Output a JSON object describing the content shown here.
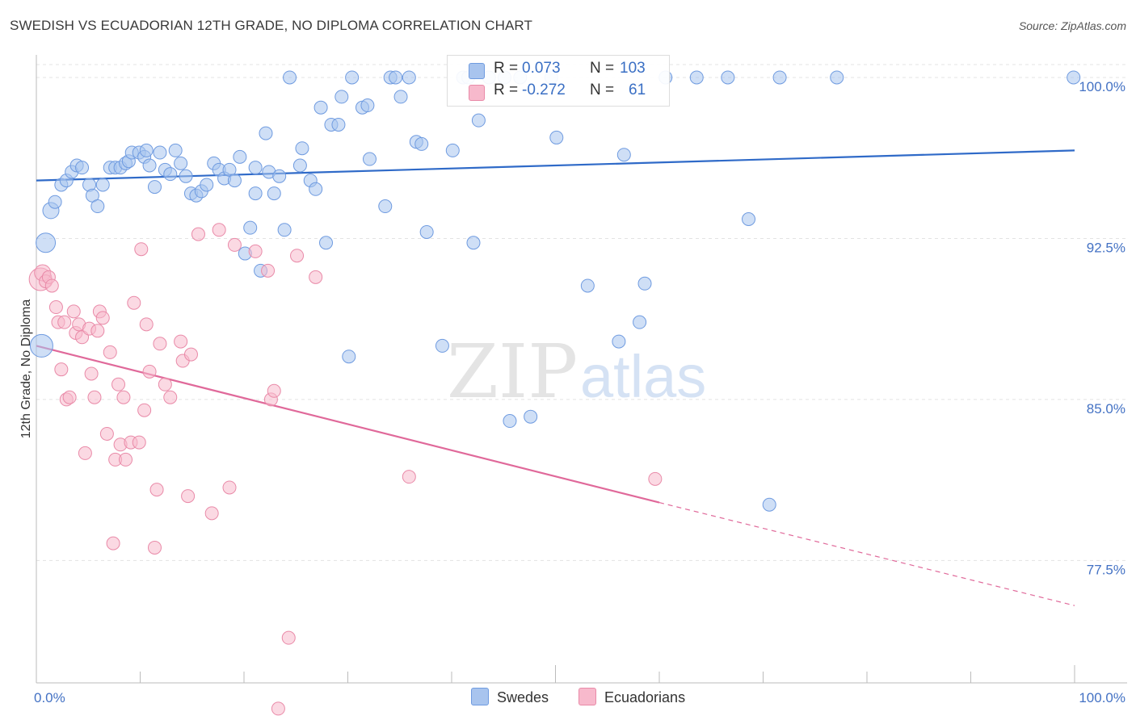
{
  "title": "SWEDISH VS ECUADORIAN 12TH GRADE, NO DIPLOMA CORRELATION CHART",
  "source": "Source: ZipAtlas.com",
  "watermark": {
    "zip": "ZIP",
    "atlas": "atlas"
  },
  "legend": {
    "r_label": "R =",
    "n_label": "N =",
    "rows": [
      {
        "series": "Swedes",
        "r": "0.073",
        "n": "103",
        "color": "#a8c4ee",
        "edge": "#6f9be0"
      },
      {
        "series": "Ecuadorians",
        "r": "-0.272",
        "n": "61",
        "color": "#f7b9cc",
        "edge": "#e98aa8"
      }
    ]
  },
  "bottom_legend": {
    "swedes": "Swedes",
    "ecuadorians": "Ecuadorians"
  },
  "chart_data": {
    "type": "scatter",
    "xlabel": "",
    "ylabel": "12th Grade, No Diploma",
    "xlim": [
      0,
      100
    ],
    "ylim": [
      71.8,
      100.6
    ],
    "x_tick_labels": [
      "0.0%",
      "100.0%"
    ],
    "y_ticks": [
      {
        "value": 100.0,
        "label": "100.0%"
      },
      {
        "value": 92.5,
        "label": "92.5%"
      },
      {
        "value": 85.0,
        "label": "85.0%"
      },
      {
        "value": 77.5,
        "label": "77.5%"
      }
    ],
    "grid": true,
    "legend_position": "top-center",
    "series": [
      {
        "name": "Swedes",
        "color": "#a8c4ee",
        "edge": "#6f9be0",
        "trend": {
          "x0": 0,
          "y0": 95.2,
          "x1": 100,
          "y1": 96.6,
          "color": "#2f6ac8"
        },
        "points": [
          [
            0.5,
            87.5,
            14
          ],
          [
            0.9,
            92.3,
            12
          ],
          [
            1.4,
            93.8,
            10
          ],
          [
            1.8,
            94.2,
            8
          ],
          [
            2.4,
            95.0,
            8
          ],
          [
            2.9,
            95.2,
            8
          ],
          [
            3.4,
            95.6,
            8
          ],
          [
            3.9,
            95.9,
            8
          ],
          [
            4.4,
            95.8,
            8
          ],
          [
            5.1,
            95.0,
            8
          ],
          [
            5.4,
            94.5,
            8
          ],
          [
            5.9,
            94.0,
            8
          ],
          [
            6.4,
            95.0,
            8
          ],
          [
            7.1,
            95.8,
            8
          ],
          [
            7.6,
            95.8,
            8
          ],
          [
            8.1,
            95.8,
            8
          ],
          [
            8.6,
            96.0,
            8
          ],
          [
            8.9,
            96.1,
            8
          ],
          [
            9.2,
            96.5,
            8
          ],
          [
            9.9,
            96.5,
            8
          ],
          [
            10.4,
            96.3,
            8
          ],
          [
            10.6,
            96.6,
            8
          ],
          [
            10.9,
            95.9,
            8
          ],
          [
            11.4,
            94.9,
            8
          ],
          [
            11.9,
            96.5,
            8
          ],
          [
            12.4,
            95.7,
            8
          ],
          [
            12.9,
            95.5,
            8
          ],
          [
            13.4,
            96.6,
            8
          ],
          [
            13.9,
            96.0,
            8
          ],
          [
            14.4,
            95.4,
            8
          ],
          [
            14.9,
            94.6,
            8
          ],
          [
            15.4,
            94.5,
            8
          ],
          [
            15.9,
            94.7,
            8
          ],
          [
            16.4,
            95.0,
            8
          ],
          [
            17.1,
            96.0,
            8
          ],
          [
            17.6,
            95.7,
            8
          ],
          [
            18.1,
            95.3,
            8
          ],
          [
            18.6,
            95.7,
            8
          ],
          [
            19.1,
            95.2,
            8
          ],
          [
            19.6,
            96.3,
            8
          ],
          [
            20.1,
            91.8,
            8
          ],
          [
            20.6,
            93.0,
            8
          ],
          [
            21.1,
            94.6,
            8
          ],
          [
            21.6,
            91.0,
            8
          ],
          [
            22.1,
            97.4,
            8
          ],
          [
            22.4,
            95.6,
            8
          ],
          [
            22.9,
            94.6,
            8
          ],
          [
            23.4,
            95.4,
            8
          ],
          [
            23.9,
            92.9,
            8
          ],
          [
            24.4,
            100.0,
            8
          ],
          [
            25.4,
            95.9,
            8
          ],
          [
            25.6,
            96.7,
            8
          ],
          [
            26.4,
            95.2,
            8
          ],
          [
            26.9,
            94.8,
            8
          ],
          [
            27.4,
            98.6,
            8
          ],
          [
            27.9,
            92.3,
            8
          ],
          [
            28.4,
            97.8,
            8
          ],
          [
            29.1,
            97.8,
            8
          ],
          [
            29.4,
            99.1,
            8
          ],
          [
            30.1,
            87.0,
            8
          ],
          [
            30.4,
            100.0,
            8
          ],
          [
            31.4,
            98.6,
            8
          ],
          [
            31.9,
            98.7,
            8
          ],
          [
            32.1,
            96.2,
            8
          ],
          [
            33.6,
            94.0,
            8
          ],
          [
            34.1,
            100.0,
            8
          ],
          [
            34.6,
            100.0,
            8
          ],
          [
            35.1,
            99.1,
            8
          ],
          [
            35.9,
            100.0,
            8
          ],
          [
            36.6,
            97.0,
            8
          ],
          [
            37.1,
            96.9,
            8
          ],
          [
            37.6,
            92.8,
            8
          ],
          [
            39.1,
            87.5,
            8
          ],
          [
            40.1,
            96.6,
            8
          ],
          [
            41.1,
            100.0,
            8
          ],
          [
            41.6,
            100.0,
            8
          ],
          [
            42.1,
            92.3,
            8
          ],
          [
            42.6,
            98.0,
            8
          ],
          [
            43.6,
            100.0,
            8
          ],
          [
            45.1,
            100.0,
            8
          ],
          [
            45.6,
            84.0,
            8
          ],
          [
            46.6,
            100.0,
            8
          ],
          [
            47.6,
            84.2,
            8
          ],
          [
            49.6,
            100.0,
            8
          ],
          [
            50.1,
            97.2,
            8
          ],
          [
            53.1,
            90.3,
            8
          ],
          [
            56.1,
            87.7,
            8
          ],
          [
            56.6,
            96.4,
            8
          ],
          [
            58.1,
            88.6,
            8
          ],
          [
            58.6,
            90.4,
            8
          ],
          [
            60.6,
            100.0,
            8
          ],
          [
            63.6,
            100.0,
            8
          ],
          [
            66.6,
            100.0,
            8
          ],
          [
            68.6,
            93.4,
            8
          ],
          [
            70.6,
            80.1,
            8
          ],
          [
            71.6,
            100.0,
            8
          ],
          [
            77.1,
            100.0,
            8
          ],
          [
            99.9,
            100.0,
            8
          ],
          [
            21.1,
            95.8,
            8
          ]
        ]
      },
      {
        "name": "Ecuadorians",
        "color": "#f7b9cc",
        "edge": "#e98aa8",
        "trend": {
          "x0": 0,
          "y0": 87.5,
          "x1": 60,
          "y1": 80.2,
          "dash_x1": 100,
          "dash_y1": 75.4,
          "color": "#e0699a"
        },
        "points": [
          [
            0.4,
            90.6,
            14
          ],
          [
            0.6,
            90.9,
            10
          ],
          [
            0.9,
            90.5,
            8
          ],
          [
            1.2,
            90.7,
            8
          ],
          [
            1.5,
            90.3,
            8
          ],
          [
            1.9,
            89.3,
            8
          ],
          [
            2.1,
            88.6,
            8
          ],
          [
            2.4,
            86.4,
            8
          ],
          [
            2.7,
            88.6,
            8
          ],
          [
            2.9,
            85.0,
            8
          ],
          [
            3.2,
            85.1,
            8
          ],
          [
            3.6,
            89.1,
            8
          ],
          [
            3.8,
            88.1,
            8
          ],
          [
            4.1,
            88.5,
            8
          ],
          [
            4.4,
            87.9,
            8
          ],
          [
            4.7,
            82.5,
            8
          ],
          [
            5.1,
            88.3,
            8
          ],
          [
            5.3,
            86.2,
            8
          ],
          [
            5.6,
            85.1,
            8
          ],
          [
            5.9,
            88.2,
            8
          ],
          [
            6.1,
            89.1,
            8
          ],
          [
            6.4,
            88.8,
            8
          ],
          [
            6.8,
            83.4,
            8
          ],
          [
            7.1,
            87.2,
            8
          ],
          [
            7.4,
            78.3,
            8
          ],
          [
            7.6,
            82.2,
            8
          ],
          [
            7.9,
            85.7,
            8
          ],
          [
            8.1,
            82.9,
            8
          ],
          [
            8.4,
            85.1,
            8
          ],
          [
            8.6,
            82.2,
            8
          ],
          [
            9.1,
            83.0,
            8
          ],
          [
            9.4,
            89.5,
            8
          ],
          [
            9.9,
            83.0,
            8
          ],
          [
            10.1,
            92.0,
            8
          ],
          [
            10.4,
            84.5,
            8
          ],
          [
            10.6,
            88.5,
            8
          ],
          [
            10.9,
            86.3,
            8
          ],
          [
            11.4,
            78.1,
            8
          ],
          [
            11.6,
            80.8,
            8
          ],
          [
            11.9,
            87.6,
            8
          ],
          [
            12.4,
            85.7,
            8
          ],
          [
            12.9,
            85.1,
            8
          ],
          [
            13.9,
            87.7,
            8
          ],
          [
            14.1,
            86.8,
            8
          ],
          [
            14.6,
            80.5,
            8
          ],
          [
            14.9,
            87.1,
            8
          ],
          [
            15.6,
            92.7,
            8
          ],
          [
            16.9,
            79.7,
            8
          ],
          [
            17.6,
            92.9,
            8
          ],
          [
            18.6,
            80.9,
            8
          ],
          [
            19.1,
            92.2,
            8
          ],
          [
            21.1,
            91.9,
            8
          ],
          [
            22.3,
            91.0,
            8
          ],
          [
            22.6,
            85.0,
            8
          ],
          [
            22.9,
            85.4,
            8
          ],
          [
            23.3,
            70.6,
            8
          ],
          [
            24.3,
            73.9,
            8
          ],
          [
            25.1,
            91.7,
            8
          ],
          [
            26.9,
            90.7,
            8
          ],
          [
            35.9,
            81.4,
            8
          ],
          [
            59.6,
            81.3,
            8
          ]
        ]
      }
    ]
  }
}
